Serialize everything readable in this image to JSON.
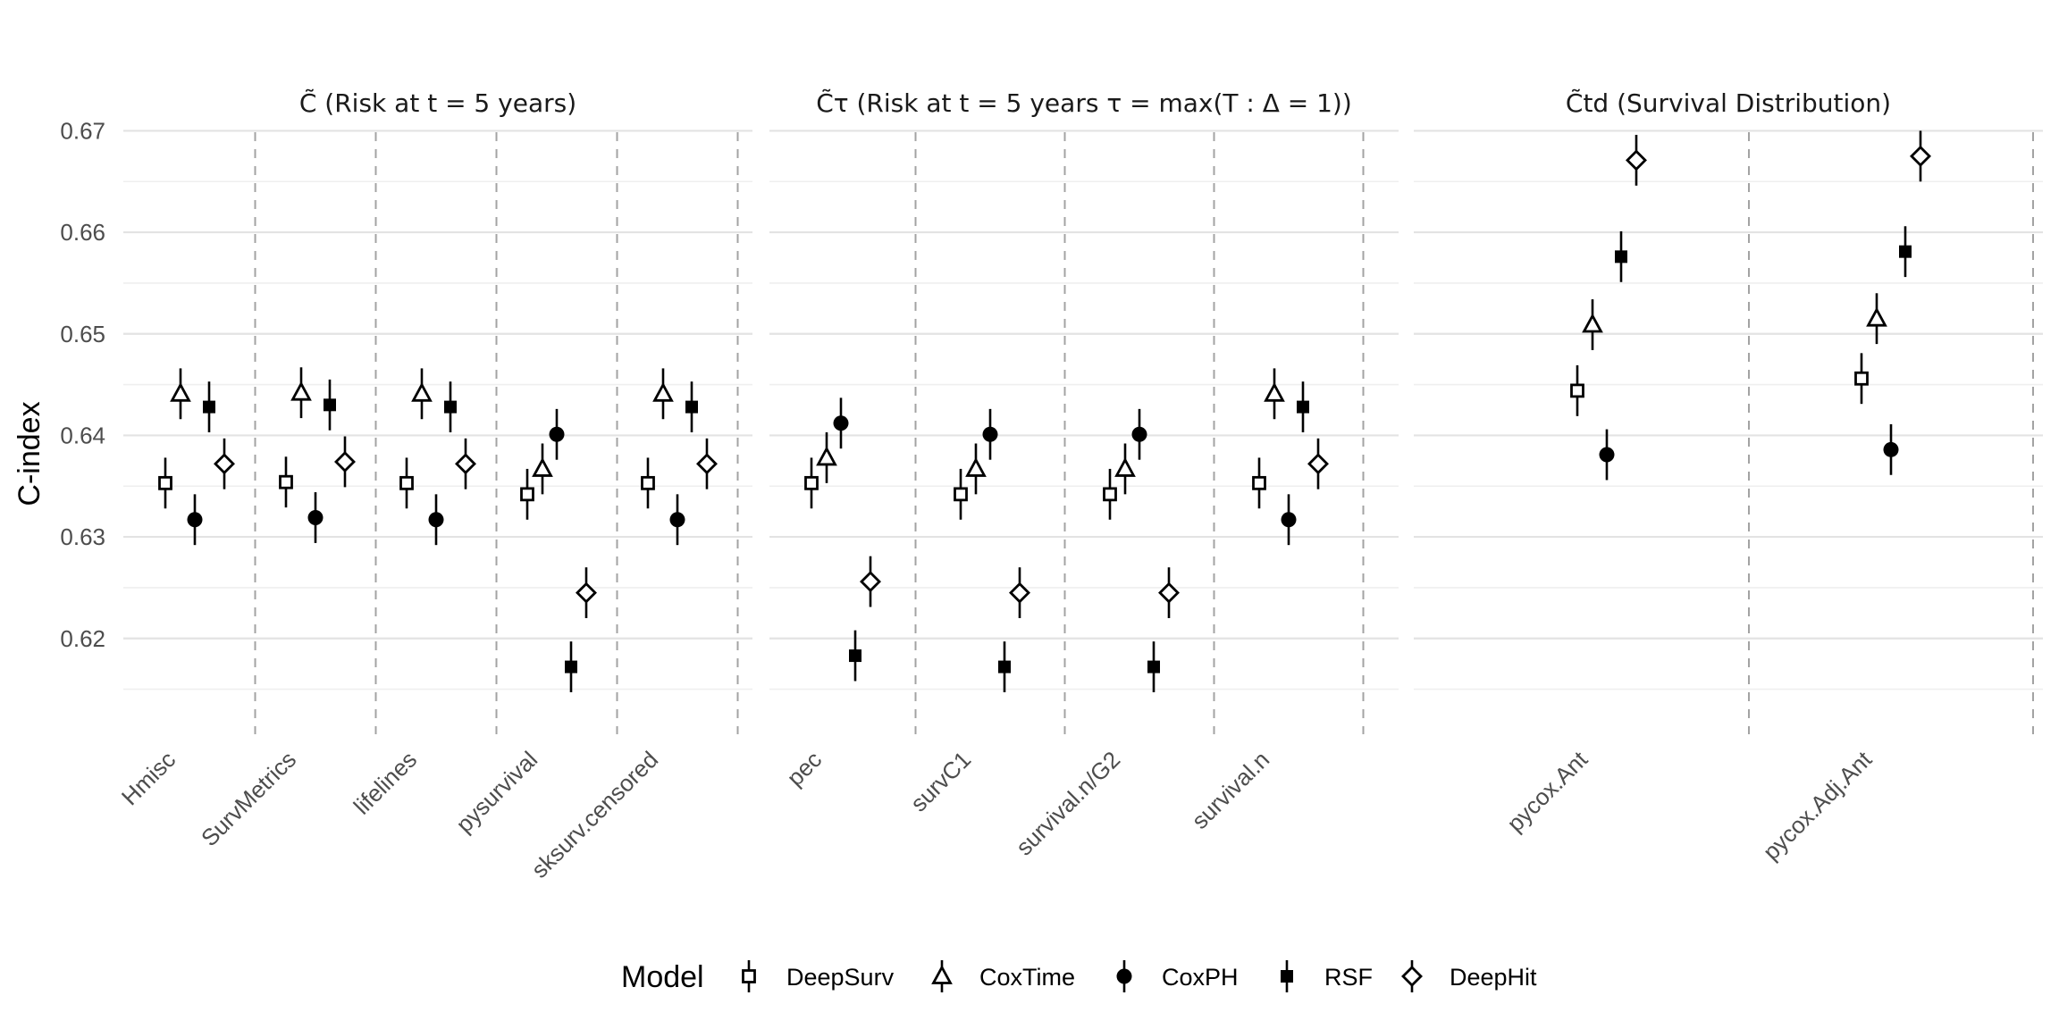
{
  "chart_data": {
    "type": "scatter",
    "ylabel": "C-index",
    "ylim": [
      0.6125,
      0.6725
    ],
    "yticks": [
      "0.62",
      "0.63",
      "0.64",
      "0.65",
      "0.66",
      "0.67"
    ],
    "grid": true,
    "legend": {
      "title": "Model",
      "placement": "bottom"
    },
    "models": [
      {
        "name": "DeepSurv",
        "marker": "open-square"
      },
      {
        "name": "CoxTime",
        "marker": "open-triangle"
      },
      {
        "name": "CoxPH",
        "marker": "filled-circle"
      },
      {
        "name": "RSF",
        "marker": "filled-square"
      },
      {
        "name": "DeepHit",
        "marker": "open-diamond"
      }
    ],
    "error_halfwidth": 0.0025,
    "panels": [
      {
        "title": "C̃ (Risk at t = 5 years)",
        "packages": [
          {
            "name": "Hmisc",
            "values": [
              0.6353,
              0.6441,
              0.6317,
              0.6428,
              0.6372
            ]
          },
          {
            "name": "SurvMetrics",
            "values": [
              0.6354,
              0.6442,
              0.6319,
              0.643,
              0.6374
            ]
          },
          {
            "name": "lifelines",
            "values": [
              0.6353,
              0.6441,
              0.6317,
              0.6428,
              0.6372
            ]
          },
          {
            "name": "pysurvival",
            "values": [
              0.6342,
              0.6367,
              0.6401,
              0.6172,
              0.6245
            ]
          },
          {
            "name": "sksurv.censored",
            "values": [
              0.6353,
              0.6441,
              0.6317,
              0.6428,
              0.6372
            ]
          }
        ]
      },
      {
        "title": "C̃τ (Risk at t = 5 years τ = max(T :  Δ = 1))",
        "packages": [
          {
            "name": "pec",
            "values": [
              0.6353,
              0.6378,
              0.6412,
              0.6183,
              0.6256
            ]
          },
          {
            "name": "survC1",
            "values": [
              0.6342,
              0.6367,
              0.6401,
              0.6172,
              0.6245
            ]
          },
          {
            "name": "survival.n/G2",
            "values": [
              0.6342,
              0.6367,
              0.6401,
              0.6172,
              0.6245
            ]
          },
          {
            "name": "survival.n",
            "values": [
              0.6353,
              0.6441,
              0.6317,
              0.6428,
              0.6372
            ]
          }
        ]
      },
      {
        "title": "C̃td (Survival Distribution)",
        "packages": [
          {
            "name": "pycox.Ant",
            "values": [
              0.6444,
              0.6509,
              0.6381,
              0.6576,
              0.6671
            ]
          },
          {
            "name": "pycox.Adj.Ant",
            "values": [
              0.6456,
              0.6515,
              0.6386,
              0.6581,
              0.6675
            ]
          }
        ]
      }
    ]
  }
}
